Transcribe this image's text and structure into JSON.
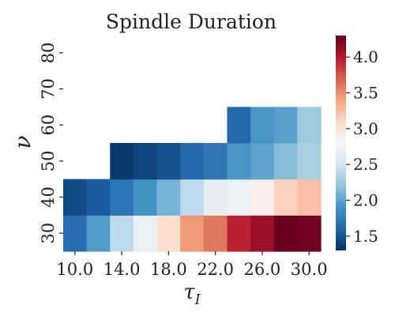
{
  "chart_data": {
    "type": "heatmap",
    "title": "Spindle Duration",
    "xlabel": "τ",
    "xlabel_sub": "I",
    "ylabel": "ν",
    "x": [
      10,
      12,
      14,
      16,
      18,
      20,
      22,
      24,
      26,
      28,
      30
    ],
    "x_tick_labels": [
      "10.0",
      "14.0",
      "18.0",
      "22.0",
      "26.0",
      "30.0"
    ],
    "x_tick_values": [
      10,
      14,
      18,
      22,
      26,
      30
    ],
    "y": [
      30,
      40,
      50,
      60,
      70,
      80
    ],
    "y_tick_labels": [
      "30",
      "40",
      "50",
      "60",
      "70",
      "80"
    ],
    "colormap": "RdBu_r",
    "colorbar": {
      "min": 1.3,
      "max": 4.3,
      "ticks": [
        1.5,
        2.0,
        2.5,
        3.0,
        3.5,
        4.0
      ],
      "tick_labels": [
        "1.5",
        "2.0",
        "2.5",
        "3.0",
        "3.5",
        "4.0"
      ]
    },
    "values": [
      [
        1.65,
        1.95,
        2.4,
        2.7,
        3.05,
        3.45,
        3.6,
        3.95,
        4.1,
        4.3,
        4.25
      ],
      [
        1.45,
        1.55,
        1.7,
        1.9,
        2.1,
        2.4,
        2.65,
        2.7,
        2.9,
        3.15,
        3.25
      ],
      [
        null,
        null,
        1.35,
        1.42,
        1.48,
        1.62,
        1.72,
        1.92,
        2.0,
        2.15,
        2.3
      ],
      [
        null,
        null,
        null,
        null,
        null,
        null,
        null,
        1.62,
        1.92,
        1.98,
        2.25
      ],
      [
        null,
        null,
        null,
        null,
        null,
        null,
        null,
        null,
        null,
        null,
        null
      ],
      [
        null,
        null,
        null,
        null,
        null,
        null,
        null,
        null,
        null,
        null,
        null
      ]
    ]
  }
}
